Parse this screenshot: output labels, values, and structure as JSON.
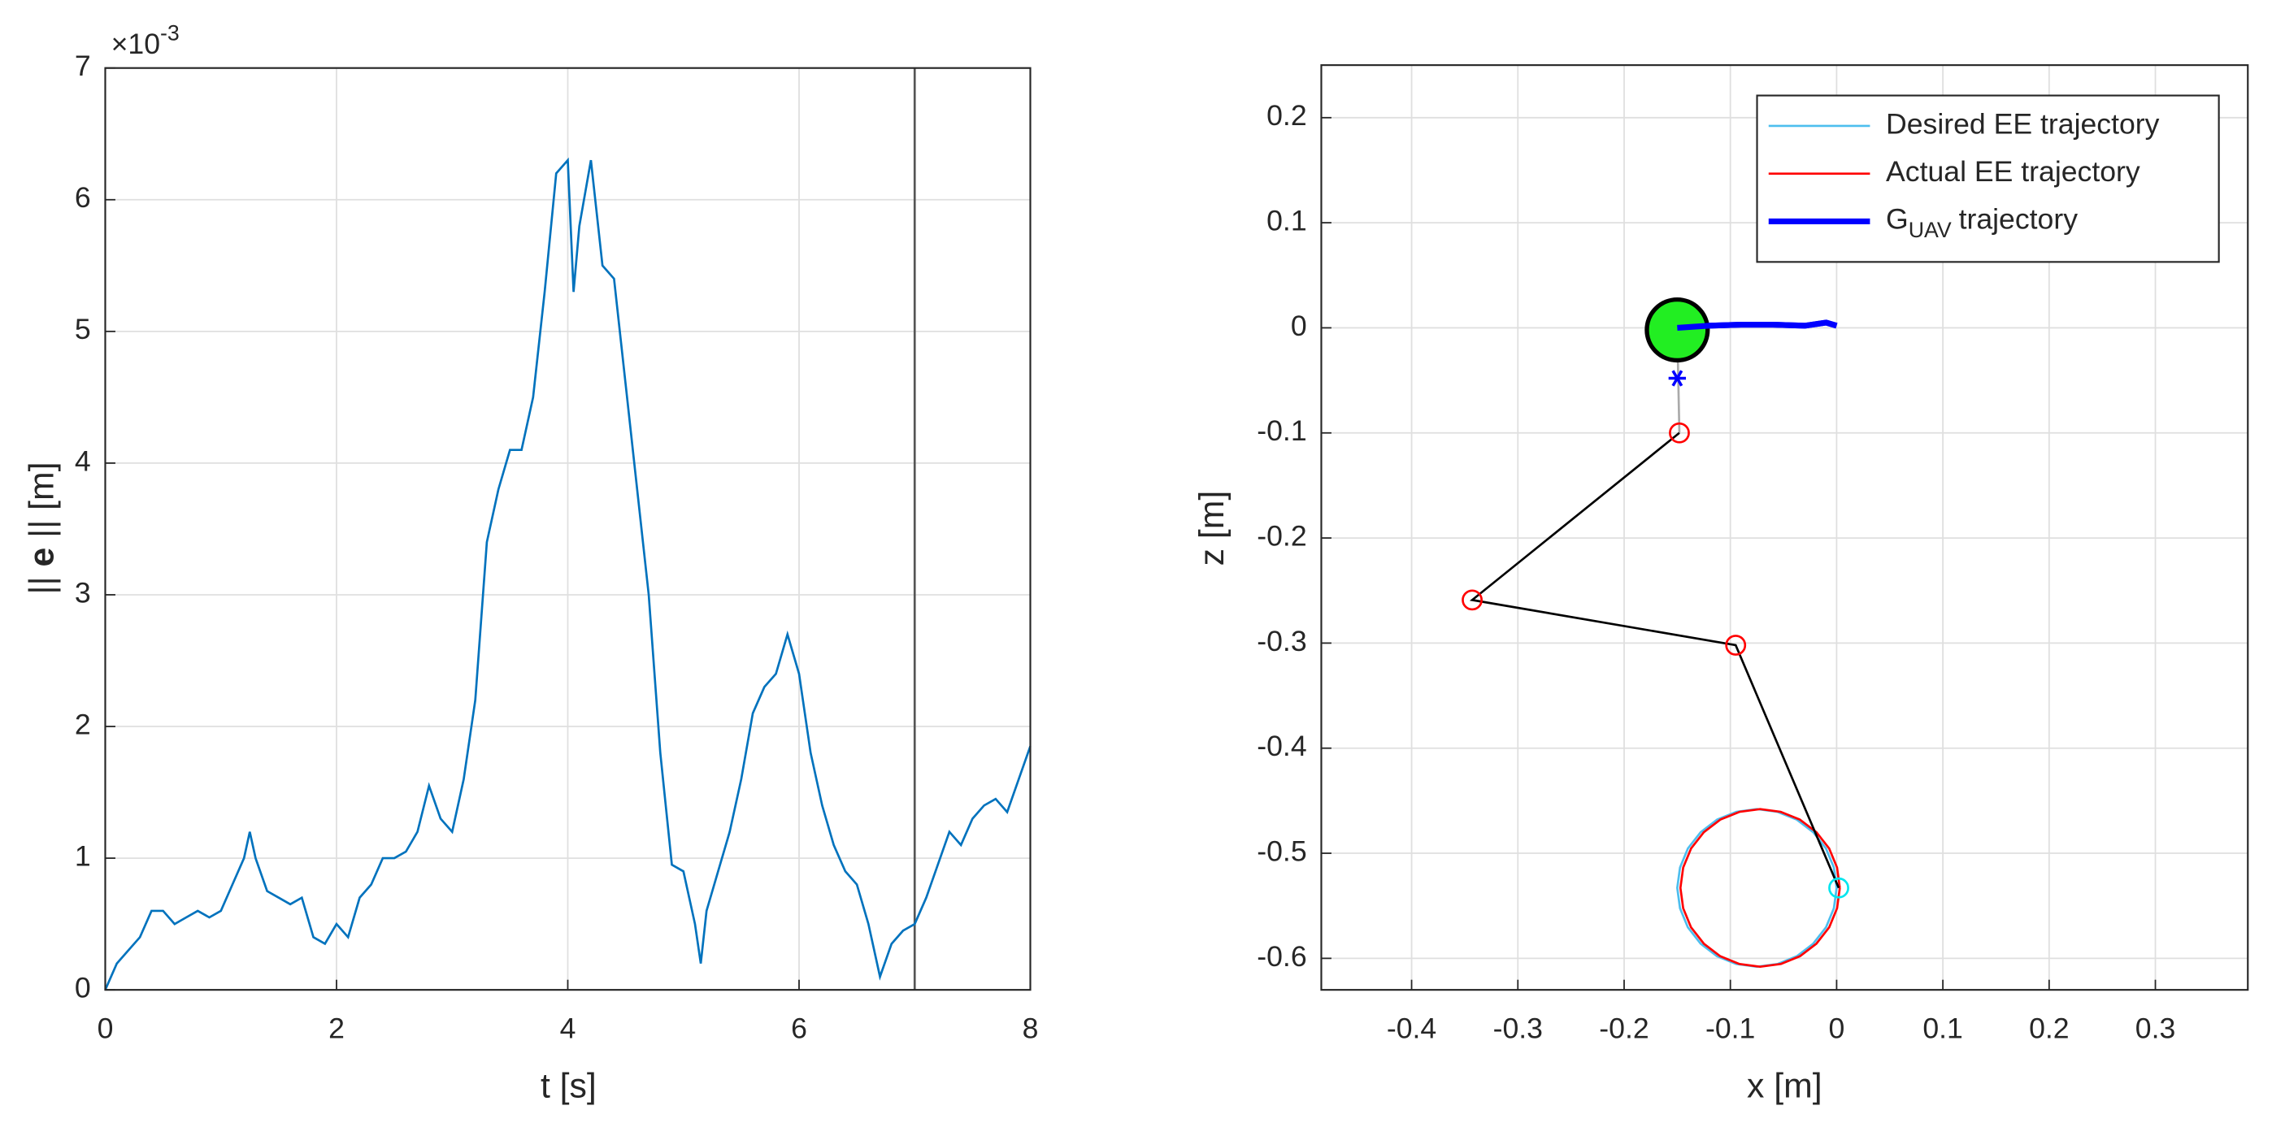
{
  "chart_data": [
    {
      "type": "line",
      "xlabel": "t [s]",
      "ylabel": [
        "||",
        "e",
        "|| [m]"
      ],
      "y_multiplier": {
        "base": "×10",
        "exponent": "-3"
      },
      "xlim": [
        0,
        8
      ],
      "ylim": [
        0,
        7
      ],
      "xticks": [
        0,
        2,
        4,
        6,
        8
      ],
      "yticks": [
        0,
        1,
        2,
        3,
        4,
        5,
        6,
        7
      ],
      "grid": true,
      "vline": 7,
      "vline_color": "#555555",
      "x": [
        0,
        0.1,
        0.2,
        0.3,
        0.4,
        0.5,
        0.6,
        0.7,
        0.8,
        0.9,
        1.0,
        1.1,
        1.2,
        1.25,
        1.3,
        1.4,
        1.5,
        1.6,
        1.7,
        1.8,
        1.9,
        2.0,
        2.1,
        2.2,
        2.3,
        2.4,
        2.5,
        2.6,
        2.7,
        2.8,
        2.9,
        3.0,
        3.1,
        3.2,
        3.3,
        3.4,
        3.5,
        3.6,
        3.7,
        3.8,
        3.9,
        4.0,
        4.05,
        4.1,
        4.2,
        4.3,
        4.4,
        4.5,
        4.6,
        4.7,
        4.8,
        4.9,
        5.0,
        5.1,
        5.15,
        5.2,
        5.3,
        5.4,
        5.5,
        5.6,
        5.7,
        5.8,
        5.9,
        6.0,
        6.1,
        6.2,
        6.3,
        6.4,
        6.5,
        6.6,
        6.7,
        6.8,
        6.9,
        7.0,
        7.1,
        7.2,
        7.3,
        7.4,
        7.5,
        7.6,
        7.7,
        7.8,
        7.9,
        8.0
      ],
      "series": [
        {
          "color": "#0072BD",
          "values": [
            0,
            0.2,
            0.3,
            0.4,
            0.6,
            0.6,
            0.5,
            0.55,
            0.6,
            0.55,
            0.6,
            0.8,
            1.0,
            1.2,
            1.0,
            0.75,
            0.7,
            0.65,
            0.7,
            0.4,
            0.35,
            0.5,
            0.4,
            0.7,
            0.8,
            1.0,
            1.0,
            1.05,
            1.2,
            1.55,
            1.3,
            1.2,
            1.6,
            2.2,
            3.4,
            3.8,
            4.1,
            4.1,
            4.5,
            5.3,
            6.2,
            6.3,
            5.3,
            5.8,
            6.3,
            5.5,
            5.4,
            4.6,
            3.8,
            3.0,
            1.8,
            0.95,
            0.9,
            0.5,
            0.2,
            0.6,
            0.9,
            1.2,
            1.6,
            2.1,
            2.3,
            2.4,
            2.7,
            2.4,
            1.8,
            1.4,
            1.1,
            0.9,
            0.8,
            0.5,
            0.1,
            0.35,
            0.45,
            0.5,
            0.7,
            0.95,
            1.2,
            1.1,
            1.3,
            1.4,
            1.45,
            1.35,
            1.6,
            1.85
          ]
        }
      ]
    },
    {
      "type": "trajectory",
      "xlabel": "x [m]",
      "ylabel": "z [m]",
      "xlim": [
        -0.485,
        0.387
      ],
      "ylim": [
        -0.63,
        0.25
      ],
      "xticks": [
        -0.4,
        -0.3,
        -0.2,
        -0.1,
        0,
        0.1,
        0.2,
        0.3
      ],
      "yticks": [
        -0.6,
        -0.5,
        -0.4,
        -0.3,
        -0.2,
        -0.1,
        0,
        0.1,
        0.2
      ],
      "grid": true,
      "legend": "upper-right",
      "series": [
        {
          "name": "Desired EE trajectory",
          "color": "#4DBEEE",
          "width": 1.5,
          "x": [
            0,
            -0.0026,
            -0.01,
            -0.022,
            -0.0375,
            -0.0556,
            -0.075,
            -0.0944,
            -0.1125,
            -0.128,
            -0.14,
            -0.1474,
            -0.15,
            -0.1474,
            -0.14,
            -0.128,
            -0.1125,
            -0.0944,
            -0.075,
            -0.0556,
            -0.0375,
            -0.022,
            -0.01,
            -0.0026,
            0
          ],
          "values": [
            -0.533,
            -0.5136,
            -0.4955,
            -0.48,
            -0.468,
            -0.4606,
            -0.458,
            -0.4606,
            -0.468,
            -0.48,
            -0.4955,
            -0.5136,
            -0.533,
            -0.5524,
            -0.5705,
            -0.586,
            -0.598,
            -0.6054,
            -0.608,
            -0.6054,
            -0.598,
            -0.586,
            -0.5705,
            -0.5524,
            -0.533
          ]
        },
        {
          "name": "Actual EE trajectory",
          "color": "#FF0000",
          "width": 1.5,
          "x": [
            0.003,
            0.0004,
            -0.007,
            -0.019,
            -0.0345,
            -0.0526,
            -0.072,
            -0.0914,
            -0.1095,
            -0.125,
            -0.137,
            -0.1444,
            -0.147,
            -0.1444,
            -0.137,
            -0.125,
            -0.1095,
            -0.0914,
            -0.072,
            -0.0526,
            -0.0345,
            -0.019,
            -0.007,
            0.0004,
            0.003
          ],
          "values": [
            -0.533,
            -0.5136,
            -0.4955,
            -0.48,
            -0.468,
            -0.4606,
            -0.458,
            -0.4606,
            -0.468,
            -0.48,
            -0.4955,
            -0.5136,
            -0.533,
            -0.5524,
            -0.5705,
            -0.586,
            -0.598,
            -0.6054,
            -0.608,
            -0.6054,
            -0.598,
            -0.586,
            -0.5705,
            -0.5524,
            -0.533
          ]
        },
        {
          "name": "G",
          "name_sub": "UAV",
          "name_rest": "trajectory",
          "color": "#0000FF",
          "width": 4,
          "x": [
            -0.15,
            -0.12,
            -0.09,
            -0.06,
            -0.03,
            -0.01,
            0
          ],
          "values": [
            0,
            0.002,
            0.003,
            0.003,
            0.002,
            0.005,
            0.002
          ]
        }
      ],
      "tether": {
        "color": "#AAAAAA",
        "x": [
          -0.15,
          -0.148
        ],
        "values": [
          0,
          -0.1
        ]
      },
      "links": {
        "color": "#000000",
        "x": [
          -0.148,
          -0.343,
          -0.095,
          0.002
        ],
        "values": [
          -0.1,
          -0.259,
          -0.302,
          -0.533
        ]
      },
      "joints": {
        "color": "#FF0000",
        "x": [
          -0.148,
          -0.343,
          -0.095
        ],
        "values": [
          -0.1,
          -0.259,
          -0.302
        ]
      },
      "ee": {
        "color": "#00E5EE",
        "x": 0.002,
        "y": -0.533
      },
      "base": {
        "color": "#22EE22",
        "x": -0.15,
        "y": -0.002
      },
      "com": {
        "color": "#0000FF",
        "x": -0.15,
        "y": -0.048
      }
    }
  ]
}
